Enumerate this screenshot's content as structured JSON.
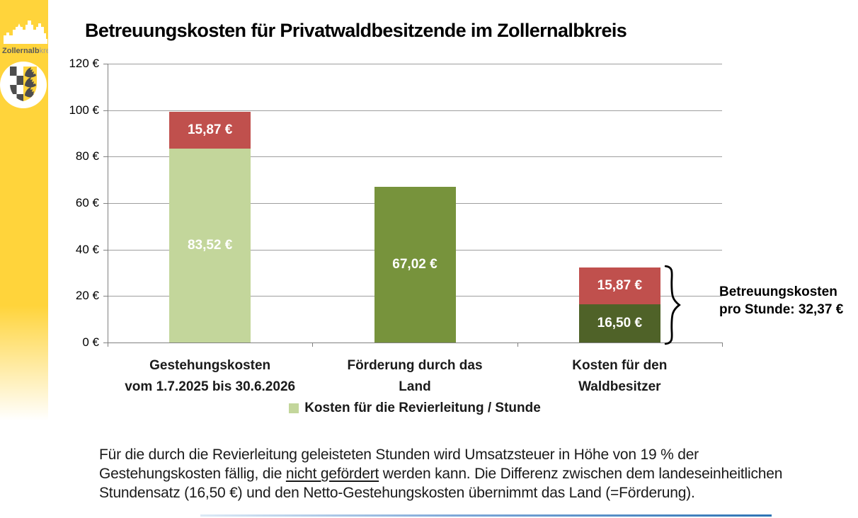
{
  "logo": {
    "region_name": "Zollernalbkreis",
    "text_bold": "Zollernalb",
    "text_light": "kreis"
  },
  "chart_data": {
    "type": "bar",
    "stacked": true,
    "title": "Betreuungskosten für Privatwaldbesitzende im Zollernalbkreis",
    "y_min": 0,
    "y_max": 120,
    "y_tick_step": 20,
    "y_tick_labels": [
      "120 €",
      "100 €",
      "80 €",
      "60 €",
      "40 €",
      "20 €",
      "0 €"
    ],
    "grid": true,
    "legend_position": "bottom-center",
    "categories": [
      {
        "line1": "Gestehungskosten",
        "line2": "vom 1.7.2025 bis 30.6.2026"
      },
      {
        "line1": "Förderung durch das",
        "line2": "Land"
      },
      {
        "line1": "Kosten für den",
        "line2": "Waldbesitzer"
      }
    ],
    "bars": [
      {
        "segments": [
          {
            "value": 83.52,
            "label": "83,52 €",
            "color": "#c3d69b"
          },
          {
            "value": 15.87,
            "label": "15,87 €",
            "color": "#c0504d"
          }
        ]
      },
      {
        "segments": [
          {
            "value": 67.02,
            "label": "67,02 €",
            "color": "#77933c"
          }
        ]
      },
      {
        "segments": [
          {
            "value": 16.5,
            "label": "16,50 €",
            "color": "#4f6228"
          },
          {
            "value": 15.87,
            "label": "15,87 €",
            "color": "#c0504d"
          }
        ]
      }
    ],
    "legend": {
      "swatch_color": "#c3d69b",
      "label": "Kosten für die Revierleitung / Stunde"
    },
    "annotation": {
      "line1": "Betreuungskosten",
      "line2": "pro Stunde: 32,37 €"
    }
  },
  "footer": {
    "line1": "Für die durch die Revierleitung geleisteten Stunden wird Umsatzsteuer in Höhe von 19 % der",
    "line2_pre": "Gestehungskosten fällig, die ",
    "line2_underlined": "nicht gefördert",
    "line2_post": " werden kann. Die Differenz zwischen dem landeseinheitlichen",
    "line3": "Stundensatz (16,50 €) und den Netto-Gestehungskosten übernimmt das Land (=Förderung)."
  },
  "colors": {
    "brand_yellow": "#FFD43B",
    "bar_light_green": "#c3d69b",
    "bar_olive_green": "#77933c",
    "bar_dark_green": "#4f6228",
    "bar_red": "#c0504d",
    "gridline_gray": "#9e9e9e",
    "axis_gray": "#808080",
    "bottom_accent_blue": "#2e74b5"
  }
}
